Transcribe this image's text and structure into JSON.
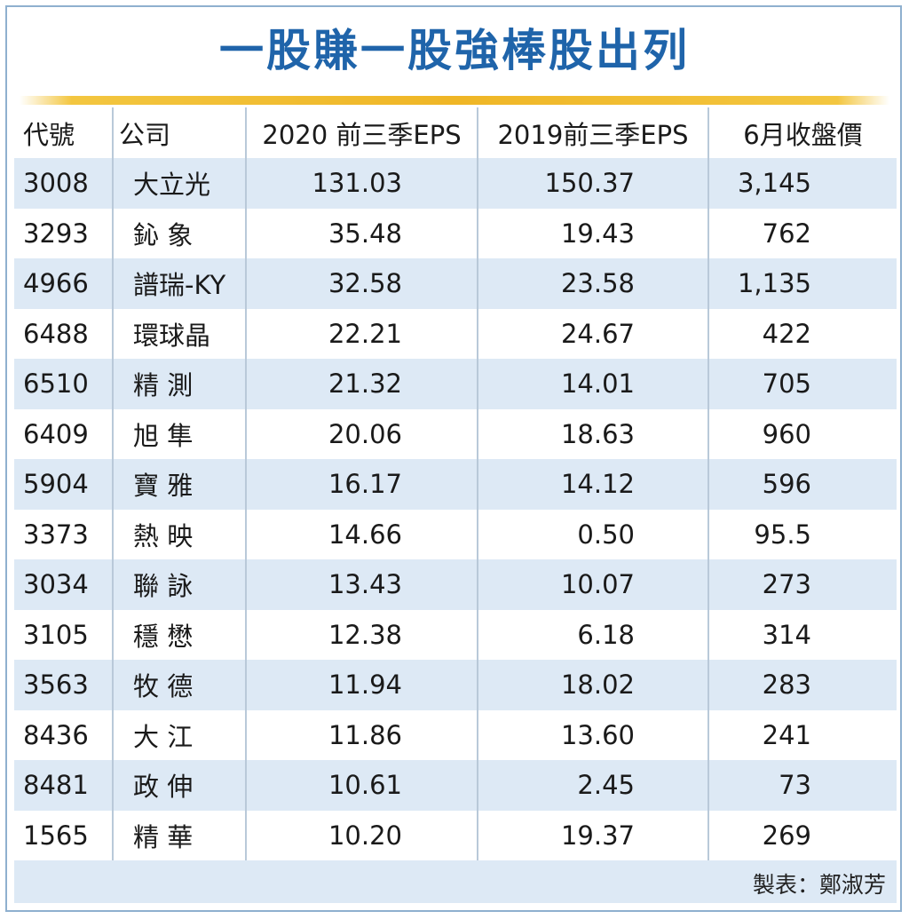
{
  "chart_data": {
    "type": "table",
    "title": "一股賺一股強棒股出列",
    "columns": [
      "代號",
      "公司",
      "2020 前三季EPS",
      "2019前三季EPS",
      "6月收盤價"
    ],
    "rows": [
      {
        "code": "3008",
        "company": "大立光",
        "eps2020": "131.03",
        "eps2019": "150.37",
        "price": "3,145"
      },
      {
        "code": "3293",
        "company": "鈊 象",
        "eps2020": "35.48",
        "eps2019": "19.43",
        "price": "762"
      },
      {
        "code": "4966",
        "company": "譜瑞-KY",
        "eps2020": "32.58",
        "eps2019": "23.58",
        "price": "1,135"
      },
      {
        "code": "6488",
        "company": "環球晶",
        "eps2020": "22.21",
        "eps2019": "24.67",
        "price": "422"
      },
      {
        "code": "6510",
        "company": "精 測",
        "eps2020": "21.32",
        "eps2019": "14.01",
        "price": "705"
      },
      {
        "code": "6409",
        "company": "旭 隼",
        "eps2020": "20.06",
        "eps2019": "18.63",
        "price": "960"
      },
      {
        "code": "5904",
        "company": "寶 雅",
        "eps2020": "16.17",
        "eps2019": "14.12",
        "price": "596"
      },
      {
        "code": "3373",
        "company": "熱 映",
        "eps2020": "14.66",
        "eps2019": "0.50",
        "price": "95.5"
      },
      {
        "code": "3034",
        "company": "聯 詠",
        "eps2020": "13.43",
        "eps2019": "10.07",
        "price": "273"
      },
      {
        "code": "3105",
        "company": "穩 懋",
        "eps2020": "12.38",
        "eps2019": "6.18",
        "price": "314"
      },
      {
        "code": "3563",
        "company": "牧 德",
        "eps2020": "11.94",
        "eps2019": "18.02",
        "price": "283"
      },
      {
        "code": "8436",
        "company": "大 江",
        "eps2020": "11.86",
        "eps2019": "13.60",
        "price": "241"
      },
      {
        "code": "8481",
        "company": "政 伸",
        "eps2020": "10.61",
        "eps2019": "2.45",
        "price": "73"
      },
      {
        "code": "1565",
        "company": "精 華",
        "eps2020": "10.20",
        "eps2019": "19.37",
        "price": "269"
      }
    ],
    "credit": "製表：鄭淑芳",
    "colors": {
      "title": "#1f64aa",
      "stripe": "#dde9f5",
      "rule": "#efb626",
      "border": "#8fb0cf"
    }
  }
}
